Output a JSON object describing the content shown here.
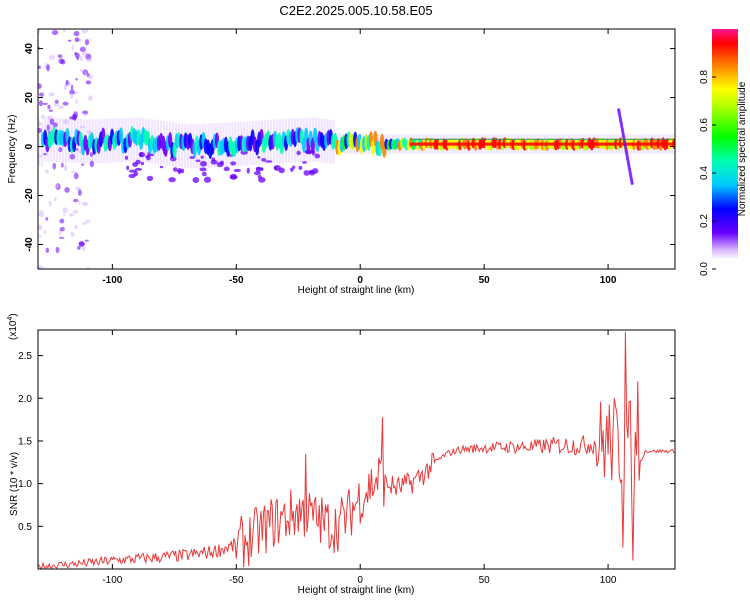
{
  "title": "C2E2.2025.005.10.58.E05",
  "chart_data": [
    {
      "type": "heatmap",
      "xlabel": "Height of straight line (km)",
      "ylabel": "Frequency (Hz)",
      "xlim": [
        -130,
        127
      ],
      "ylim": [
        -50,
        48
      ],
      "x_ticks": [
        -100,
        -50,
        0,
        50,
        100
      ],
      "y_ticks": [
        -40,
        -20,
        0,
        20,
        40
      ],
      "colorbar": {
        "label": "Normalized spectral amplitude",
        "range": [
          0,
          1
        ],
        "ticks": [
          0.0,
          0.2,
          0.4,
          0.6,
          0.8
        ],
        "colormap": [
          "#ffffff",
          "#d8b4fe",
          "#6a00ff",
          "#0000ff",
          "#00c8ff",
          "#00ffb0",
          "#00ff00",
          "#b4ff00",
          "#ffff00",
          "#ff8000",
          "#ff0000",
          "#ff1493"
        ]
      },
      "ridge": [
        {
          "x": -128,
          "y": 3
        },
        {
          "x": -110,
          "y": 2
        },
        {
          "x": -90,
          "y": 3
        },
        {
          "x": -70,
          "y": 0
        },
        {
          "x": -50,
          "y": 1
        },
        {
          "x": -35,
          "y": 2
        },
        {
          "x": -20,
          "y": 3
        },
        {
          "x": -5,
          "y": 1
        },
        {
          "x": 10,
          "y": 1
        },
        {
          "x": 30,
          "y": 1
        },
        {
          "x": 60,
          "y": 1
        },
        {
          "x": 90,
          "y": 1
        },
        {
          "x": 105,
          "y": 1
        },
        {
          "x": 127,
          "y": 1
        }
      ]
    },
    {
      "type": "line",
      "xlabel": "Height of straight line (km)",
      "ylabel": "SNR (10 * v/v)",
      "y_multiplier": "(x10",
      "y_multiplier_exponent": "4",
      "y_multiplier_close": ")",
      "xlim": [
        -130,
        127
      ],
      "ylim": [
        0,
        2.8
      ],
      "x_ticks": [
        -100,
        -50,
        0,
        50,
        100
      ],
      "y_ticks": [
        0.5,
        1.0,
        1.5,
        2.0,
        2.5
      ],
      "y_tick_labels": [
        "0.5",
        "1.0",
        "1.5",
        "2.0",
        "2.5"
      ],
      "color": "#e8393a",
      "series": [
        {
          "x": [
            -130,
            -120,
            -110,
            -100,
            -90,
            -80,
            -70,
            -60,
            -50,
            -45,
            -40,
            -35,
            -30,
            -25,
            -20,
            -15,
            -10,
            -5,
            0,
            5,
            8,
            10,
            15,
            20,
            25,
            30,
            35,
            40,
            50,
            60,
            70,
            80,
            90,
            95,
            100,
            103,
            105,
            107,
            108,
            110,
            112,
            115,
            120,
            127
          ],
          "y": [
            0.03,
            0.05,
            0.07,
            0.1,
            0.12,
            0.14,
            0.16,
            0.2,
            0.28,
            0.35,
            0.45,
            0.55,
            0.6,
            0.68,
            0.62,
            0.55,
            0.5,
            0.62,
            0.85,
            1.0,
            1.1,
            1.0,
            0.95,
            1.0,
            1.1,
            1.25,
            1.35,
            1.4,
            1.42,
            1.43,
            1.43,
            1.45,
            1.45,
            1.48,
            1.5,
            1.5,
            1.4,
            1.6,
            1.5,
            1.4,
            1.2,
            1.38,
            1.38,
            1.38
          ]
        }
      ],
      "spikes": [
        {
          "x": -22,
          "y": 1.35
        },
        {
          "x": 9,
          "y": 1.78
        },
        {
          "x": 107,
          "y": 2.78
        },
        {
          "x": 106,
          "y": 0.25
        },
        {
          "x": 110,
          "y": 0.1
        },
        {
          "x": 112,
          "y": 2.2
        }
      ]
    }
  ]
}
